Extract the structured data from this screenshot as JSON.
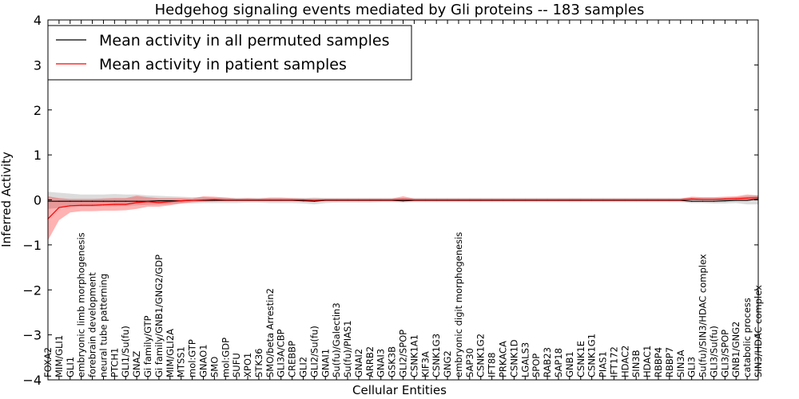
{
  "chart_data": {
    "type": "line",
    "title": "Hedgehog signaling events mediated by Gli proteins -- 183 samples",
    "xlabel": "Cellular Entities",
    "ylabel": "Inferred Activity",
    "ylim": [
      -4,
      4
    ],
    "yticks": [
      -4,
      -3,
      -2,
      -1,
      0,
      1,
      2,
      3,
      4
    ],
    "ytick_labels": [
      "−4",
      "−3",
      "−2",
      "−1",
      "0",
      "1",
      "2",
      "3",
      "4"
    ],
    "legend_position": "top-left",
    "categories": [
      "FOXA2",
      "MIM/GLI1",
      "GLI1",
      "embryonic limb morphogenesis",
      "forebrain development",
      "neural tube patterning",
      "PTCH1",
      "GLI1/Su(fu)",
      "GNAZ",
      "Gi family/GTP",
      "Gi family/GNB1/GNG2/GDP",
      "MIM/GLI2A",
      "MTSS1",
      "mol:GTP",
      "GNAO1",
      "SMO",
      "mol:GDP",
      "SUFU",
      "XPO1",
      "STK36",
      "SMO/beta Arrestin2",
      "GLI3A/CBP",
      "CREBBP",
      "GLI2",
      "GLI2/Su(fu)",
      "GNAI1",
      "Su(fu)/Galectin3",
      "Su(fu)/PIAS1",
      "GNAI2",
      "ARRB2",
      "GNAI3",
      "GSK3B",
      "GLI2/SPOP",
      "CSNK1A1",
      "KIF3A",
      "CSNK1G3",
      "GNG2",
      "embryonic digit morphogenesis",
      "SAP30",
      "CSNK1G2",
      "IFT88",
      "PRKACA",
      "CSNK1D",
      "LGALS3",
      "SPOP",
      "RAB23",
      "SAP18",
      "GNB1",
      "CSNK1E",
      "CSNK1G1",
      "PIAS1",
      "IFT172",
      "HDAC2",
      "SIN3B",
      "HDAC1",
      "RBBP4",
      "RBBP7",
      "SIN3A",
      "GLI3",
      "Su(fu)/SIN3/HDAC complex",
      "GLI3/Su(fu)",
      "GLI3/SPOP",
      "GNB1/GNG2",
      "catabolic process",
      "SIN3/HDAC complex"
    ],
    "series": [
      {
        "name": "Mean activity in all permuted samples",
        "color": "#000000",
        "values": [
          -0.03,
          -0.03,
          -0.03,
          -0.03,
          -0.03,
          -0.03,
          -0.03,
          -0.03,
          -0.03,
          -0.03,
          -0.02,
          -0.02,
          -0.02,
          -0.01,
          -0.01,
          -0.01,
          -0.01,
          -0.01,
          -0.01,
          -0.01,
          -0.01,
          -0.01,
          -0.01,
          -0.02,
          -0.03,
          -0.01,
          -0.01,
          -0.01,
          -0.01,
          -0.01,
          -0.01,
          -0.01,
          -0.02,
          -0.01,
          -0.01,
          -0.01,
          -0.01,
          -0.01,
          -0.01,
          -0.01,
          -0.01,
          -0.01,
          -0.01,
          -0.01,
          -0.01,
          -0.01,
          -0.01,
          -0.01,
          -0.01,
          -0.01,
          -0.01,
          -0.01,
          -0.01,
          -0.01,
          -0.01,
          -0.01,
          -0.01,
          -0.01,
          -0.03,
          -0.03,
          -0.03,
          -0.02,
          -0.01,
          -0.01,
          0.02
        ],
        "band_low": [
          -0.2,
          -0.18,
          -0.16,
          -0.15,
          -0.15,
          -0.14,
          -0.14,
          -0.13,
          -0.12,
          -0.11,
          -0.1,
          -0.09,
          -0.08,
          -0.08,
          -0.07,
          -0.07,
          -0.07,
          -0.07,
          -0.06,
          -0.06,
          -0.07,
          -0.07,
          -0.07,
          -0.08,
          -0.1,
          -0.07,
          -0.06,
          -0.06,
          -0.06,
          -0.06,
          -0.05,
          -0.05,
          -0.06,
          -0.05,
          -0.05,
          -0.05,
          -0.05,
          -0.05,
          -0.05,
          -0.05,
          -0.05,
          -0.05,
          -0.05,
          -0.05,
          -0.05,
          -0.05,
          -0.05,
          -0.05,
          -0.05,
          -0.05,
          -0.05,
          -0.05,
          -0.05,
          -0.05,
          -0.05,
          -0.05,
          -0.05,
          -0.05,
          -0.07,
          -0.07,
          -0.08,
          -0.08,
          -0.07,
          -0.1,
          -0.1
        ],
        "band_high": [
          0.18,
          0.16,
          0.14,
          0.12,
          0.12,
          0.12,
          0.13,
          0.12,
          0.12,
          0.1,
          0.09,
          0.08,
          0.07,
          0.06,
          0.06,
          0.05,
          0.05,
          0.04,
          0.04,
          0.04,
          0.04,
          0.04,
          0.04,
          0.04,
          0.05,
          0.04,
          0.04,
          0.04,
          0.04,
          0.04,
          0.04,
          0.04,
          0.04,
          0.04,
          0.04,
          0.04,
          0.04,
          0.04,
          0.04,
          0.04,
          0.04,
          0.04,
          0.04,
          0.04,
          0.04,
          0.04,
          0.04,
          0.04,
          0.04,
          0.04,
          0.04,
          0.04,
          0.04,
          0.04,
          0.04,
          0.04,
          0.04,
          0.04,
          0.05,
          0.05,
          0.05,
          0.05,
          0.06,
          0.08,
          0.1
        ]
      },
      {
        "name": "Mean activity in patient samples",
        "color": "#ff0000",
        "values": [
          -0.42,
          -0.17,
          -0.13,
          -0.12,
          -0.12,
          -0.11,
          -0.1,
          -0.1,
          -0.06,
          -0.04,
          -0.06,
          -0.04,
          -0.02,
          -0.01,
          0.0,
          0.01,
          0.0,
          0.0,
          0.0,
          0.0,
          0.0,
          0.0,
          0.0,
          0.0,
          -0.01,
          0.0,
          0.0,
          0.0,
          0.0,
          0.0,
          0.0,
          0.0,
          0.01,
          0.0,
          0.0,
          0.0,
          0.0,
          0.0,
          0.0,
          0.0,
          0.0,
          0.0,
          0.0,
          0.0,
          0.0,
          0.0,
          0.0,
          0.0,
          0.0,
          0.0,
          0.0,
          0.0,
          0.0,
          0.0,
          0.0,
          0.0,
          0.0,
          0.0,
          0.02,
          0.01,
          0.01,
          0.02,
          0.03,
          0.04,
          0.05
        ],
        "band_low": [
          -0.9,
          -0.45,
          -0.28,
          -0.25,
          -0.25,
          -0.24,
          -0.24,
          -0.23,
          -0.2,
          -0.15,
          -0.15,
          -0.12,
          -0.08,
          -0.05,
          -0.04,
          -0.03,
          -0.02,
          -0.02,
          -0.02,
          -0.02,
          -0.02,
          -0.02,
          -0.02,
          -0.02,
          -0.03,
          -0.02,
          -0.02,
          -0.02,
          -0.02,
          -0.02,
          -0.02,
          -0.02,
          -0.02,
          -0.02,
          -0.02,
          -0.02,
          -0.02,
          -0.02,
          -0.02,
          -0.02,
          -0.02,
          -0.02,
          -0.02,
          -0.02,
          -0.02,
          -0.02,
          -0.02,
          -0.02,
          -0.02,
          -0.02,
          -0.02,
          -0.02,
          -0.02,
          -0.02,
          -0.02,
          -0.02,
          -0.02,
          -0.02,
          -0.01,
          -0.01,
          -0.01,
          -0.01,
          0.0,
          0.0,
          0.0
        ],
        "band_high": [
          0.08,
          0.04,
          0.02,
          0.02,
          0.02,
          0.03,
          0.04,
          0.04,
          0.09,
          0.06,
          0.04,
          0.04,
          0.04,
          0.03,
          0.08,
          0.07,
          0.05,
          0.03,
          0.04,
          0.03,
          0.05,
          0.05,
          0.04,
          0.03,
          0.03,
          0.03,
          0.03,
          0.03,
          0.03,
          0.03,
          0.03,
          0.03,
          0.08,
          0.03,
          0.03,
          0.03,
          0.03,
          0.03,
          0.03,
          0.03,
          0.03,
          0.03,
          0.03,
          0.03,
          0.03,
          0.03,
          0.03,
          0.03,
          0.03,
          0.03,
          0.03,
          0.03,
          0.03,
          0.03,
          0.03,
          0.03,
          0.03,
          0.03,
          0.07,
          0.06,
          0.06,
          0.07,
          0.08,
          0.12,
          0.1
        ]
      }
    ]
  }
}
